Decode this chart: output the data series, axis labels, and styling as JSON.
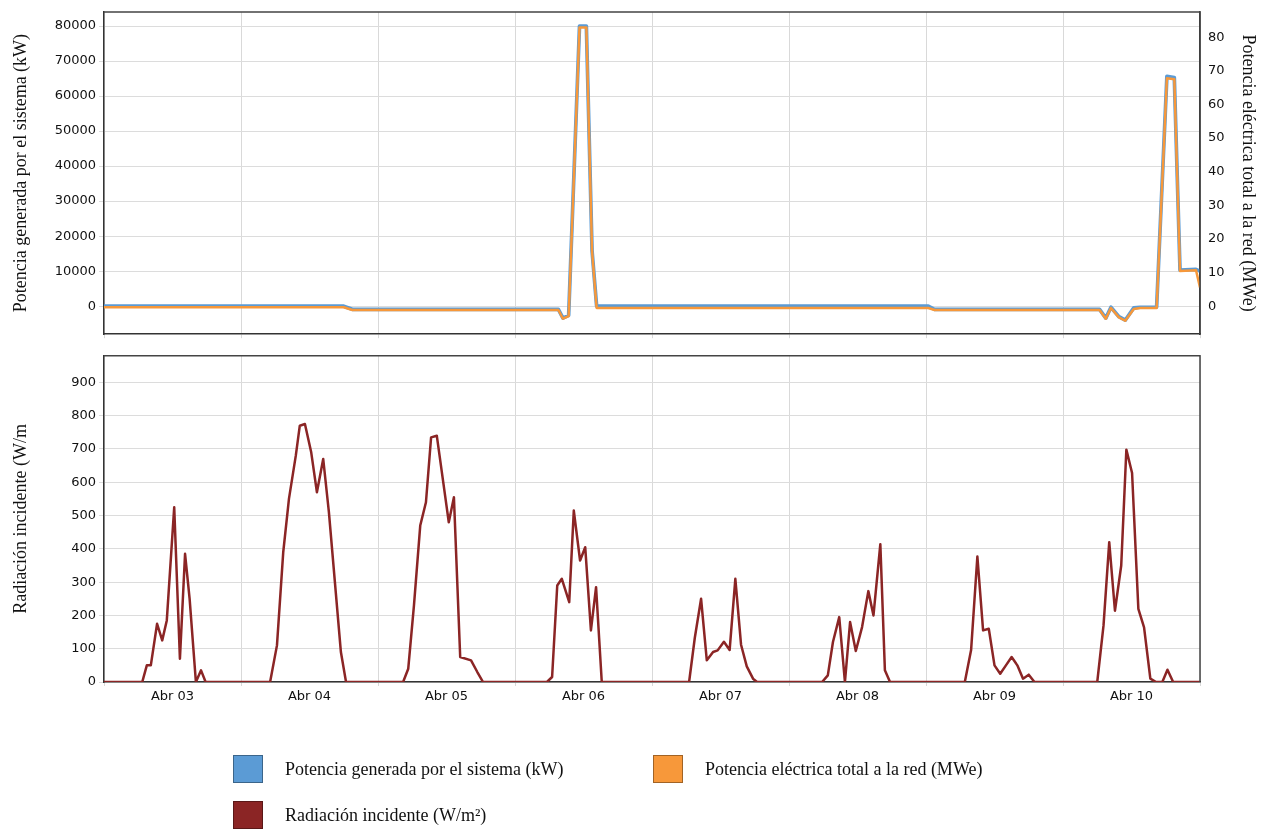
{
  "chart_data": [
    {
      "type": "line",
      "ylabel": "Potencia generada por el sistema (kW)",
      "y2label": "Potencia eléctrica total a la red (MWe)",
      "xlim": [
        "--04-03T00:00",
        "--04-11T00:00"
      ],
      "xticks": [
        {
          "value": "--04-03T00:00",
          "label": null
        },
        {
          "value": "--04-04T00:00",
          "label": null
        },
        {
          "value": "--04-05T00:00",
          "label": null
        },
        {
          "value": "--04-06T00:00",
          "label": null
        },
        {
          "value": "--04-07T00:00",
          "label": null
        },
        {
          "value": "--04-08T00:00",
          "label": null
        },
        {
          "value": "--04-09T00:00",
          "label": null
        },
        {
          "value": "--04-10T00:00",
          "label": null
        },
        {
          "value": "--04-11T00:00",
          "label": null
        }
      ],
      "ylim": [
        -8000,
        84000
      ],
      "yticks": [
        0,
        10000,
        20000,
        30000,
        40000,
        50000,
        60000,
        70000,
        80000
      ],
      "y2lim": [
        -8.3,
        87.5
      ],
      "y2ticks": [
        0,
        10,
        20,
        30,
        40,
        50,
        60,
        70,
        80
      ],
      "tick_labels": "y",
      "grid": true,
      "legend": "bottom",
      "series": [
        {
          "name": "Potencia generada por el sistema (kW)",
          "color": "#5b9bd5",
          "x": [
            "--04-03T00:00",
            "--04-04T18:00",
            "--04-04T19:30",
            "--04-06T07:36",
            "--04-06T08:24",
            "--04-06T09:24",
            "--04-06T11:18",
            "--04-06T12:30",
            "--04-06T13:30",
            "--04-06T14:18",
            "--04-09T00:24",
            "--04-09T01:30",
            "--04-10T06:24",
            "--04-10T07:30",
            "--04-10T08:24",
            "--04-10T09:48",
            "--04-10T10:54",
            "--04-10T12:24",
            "--04-10T13:30",
            "--04-10T16:24",
            "--04-10T18:12",
            "--04-10T19:30",
            "--04-10T20:30",
            "--04-10T23:18",
            "--04-11T00:00"
          ],
          "values": [
            0,
            0,
            -900,
            -900,
            -3400,
            -2600,
            80000,
            80000,
            15800,
            0,
            0,
            -900,
            -900,
            -3400,
            -300,
            -3000,
            -4000,
            -500,
            -300,
            -300,
            65600,
            65300,
            10300,
            10500,
            10000
          ]
        },
        {
          "name": "Potencia eléctrica total a la red (MWe)",
          "color": "#f7983a",
          "axis": "y2",
          "x": [
            "--04-03T00:00",
            "--04-04T18:00",
            "--04-04T19:30",
            "--04-06T07:36",
            "--04-06T08:24",
            "--04-06T09:24",
            "--04-06T11:18",
            "--04-06T12:30",
            "--04-06T13:30",
            "--04-06T14:18",
            "--04-09T00:24",
            "--04-09T01:30",
            "--04-10T06:24",
            "--04-10T07:30",
            "--04-10T08:24",
            "--04-10T09:48",
            "--04-10T10:54",
            "--04-10T12:24",
            "--04-10T13:30",
            "--04-10T16:24",
            "--04-10T18:12",
            "--04-10T19:30",
            "--04-10T20:30",
            "--04-10T23:18",
            "--04-11T00:00"
          ],
          "values": [
            -0.3,
            -0.3,
            -1.1,
            -1.1,
            -3.7,
            -2.9,
            82.9,
            82.9,
            16.3,
            -0.5,
            -0.5,
            -1.1,
            -1.1,
            -3.7,
            -0.5,
            -3.3,
            -4.3,
            -0.8,
            -0.5,
            -0.5,
            67.8,
            67.5,
            10.5,
            10.7,
            5.6
          ]
        }
      ]
    },
    {
      "type": "line",
      "ylabel": "Radiación incidente (W/m",
      "xlim": [
        "--04-03T00:00",
        "--04-11T00:00"
      ],
      "xticks": [
        {
          "value": "--04-03T00:00",
          "label": null
        },
        {
          "value": "--04-03T12:00",
          "label": "Abr 03"
        },
        {
          "value": "--04-04T00:00",
          "label": null
        },
        {
          "value": "--04-04T12:00",
          "label": "Abr 04"
        },
        {
          "value": "--04-05T00:00",
          "label": null
        },
        {
          "value": "--04-05T12:00",
          "label": "Abr 05"
        },
        {
          "value": "--04-06T00:00",
          "label": null
        },
        {
          "value": "--04-06T12:00",
          "label": "Abr 06"
        },
        {
          "value": "--04-07T00:00",
          "label": null
        },
        {
          "value": "--04-07T12:00",
          "label": "Abr 07"
        },
        {
          "value": "--04-08T00:00",
          "label": null
        },
        {
          "value": "--04-08T12:00",
          "label": "Abr 08"
        },
        {
          "value": "--04-09T00:00",
          "label": null
        },
        {
          "value": "--04-09T12:00",
          "label": "Abr 09"
        },
        {
          "value": "--04-10T00:00",
          "label": null
        },
        {
          "value": "--04-10T12:00",
          "label": "Abr 10"
        },
        {
          "value": "--04-11T00:00",
          "label": null
        }
      ],
      "ylim": [
        0,
        980
      ],
      "yticks": [
        0,
        100,
        200,
        300,
        400,
        500,
        600,
        700,
        800,
        900
      ],
      "grid": true,
      "legend": "bottom",
      "series": [
        {
          "name": "Radiación incidente (W/m²)",
          "color": "#8b2525",
          "x": [
            "--04-03T00:00",
            "--04-03T06:42",
            "--04-03T07:30",
            "--04-03T08:12",
            "--04-03T09:18",
            "--04-03T10:12",
            "--04-03T11:00",
            "--04-03T12:18",
            "--04-03T13:18",
            "--04-03T14:12",
            "--04-03T15:00",
            "--04-03T16:06",
            "--04-03T17:00",
            "--04-03T17:48",
            "--04-04T05:06",
            "--04-04T06:18",
            "--04-04T07:24",
            "--04-04T08:24",
            "--04-04T09:36",
            "--04-04T10:18",
            "--04-04T11:12",
            "--04-04T12:18",
            "--04-04T13:18",
            "--04-04T14:24",
            "--04-04T15:24",
            "--04-04T17:30",
            "--04-04T18:24",
            "--04-05T04:24",
            "--04-05T05:18",
            "--04-05T06:18",
            "--04-05T07:24",
            "--04-05T08:24",
            "--04-05T09:18",
            "--04-05T10:18",
            "--04-05T12:24",
            "--04-05T13:18",
            "--04-05T14:24",
            "--04-05T16:18",
            "--04-05T17:24",
            "--04-05T18:24",
            "--04-06T05:36",
            "--04-06T06:30",
            "--04-06T07:24",
            "--04-06T08:12",
            "--04-06T09:30",
            "--04-06T10:18",
            "--04-06T11:24",
            "--04-06T12:18",
            "--04-06T13:18",
            "--04-06T14:12",
            "--04-06T15:12",
            "--04-07T06:30",
            "--04-07T07:30",
            "--04-07T08:36",
            "--04-07T09:36",
            "--04-07T10:42",
            "--04-07T11:30",
            "--04-07T12:36",
            "--04-07T13:36",
            "--04-07T14:36",
            "--04-07T15:36",
            "--04-07T16:36",
            "--04-07T17:42",
            "--04-07T18:24",
            "--04-08T05:48",
            "--04-08T06:48",
            "--04-08T07:42",
            "--04-08T08:48",
            "--04-08T09:48",
            "--04-08T10:42",
            "--04-08T11:42",
            "--04-08T12:48",
            "--04-08T13:54",
            "--04-08T14:48",
            "--04-08T16:00",
            "--04-08T16:48",
            "--04-08T17:42",
            "--04-09T06:48",
            "--04-09T07:54",
            "--04-09T09:00",
            "--04-09T10:00",
            "--04-09T11:00",
            "--04-09T12:00",
            "--04-09T13:00",
            "--04-09T14:00",
            "--04-09T15:00",
            "--04-09T16:00",
            "--04-09T17:00",
            "--04-09T18:00",
            "--04-09T19:00",
            "--04-10T06:00",
            "--04-10T07:06",
            "--04-10T08:06",
            "--04-10T09:06",
            "--04-10T10:12",
            "--04-10T11:06",
            "--04-10T12:06",
            "--04-10T13:12",
            "--04-10T14:12",
            "--04-10T15:18",
            "--04-10T16:18",
            "--04-10T17:24",
            "--04-10T18:18",
            "--04-10T19:18",
            "--04-11T00:00"
          ],
          "values": [
            0,
            0,
            50,
            50,
            175,
            125,
            185,
            525,
            70,
            385,
            250,
            0,
            35,
            0,
            0,
            110,
            390,
            550,
            680,
            770,
            775,
            690,
            570,
            670,
            510,
            90,
            0,
            0,
            40,
            230,
            470,
            540,
            735,
            740,
            480,
            555,
            75,
            65,
            30,
            0,
            0,
            15,
            290,
            310,
            240,
            515,
            365,
            405,
            155,
            285,
            0,
            0,
            133,
            250,
            65,
            90,
            95,
            121,
            96,
            310,
            112,
            47,
            10,
            0,
            0,
            20,
            120,
            195,
            0,
            180,
            93,
            165,
            273,
            200,
            414,
            35,
            0,
            0,
            96,
            377,
            155,
            160,
            50,
            25,
            50,
            75,
            50,
            10,
            22,
            0,
            0,
            170,
            420,
            214,
            350,
            698,
            628,
            220,
            164,
            10,
            0,
            0,
            37,
            0,
            0
          ]
        }
      ]
    }
  ]
}
